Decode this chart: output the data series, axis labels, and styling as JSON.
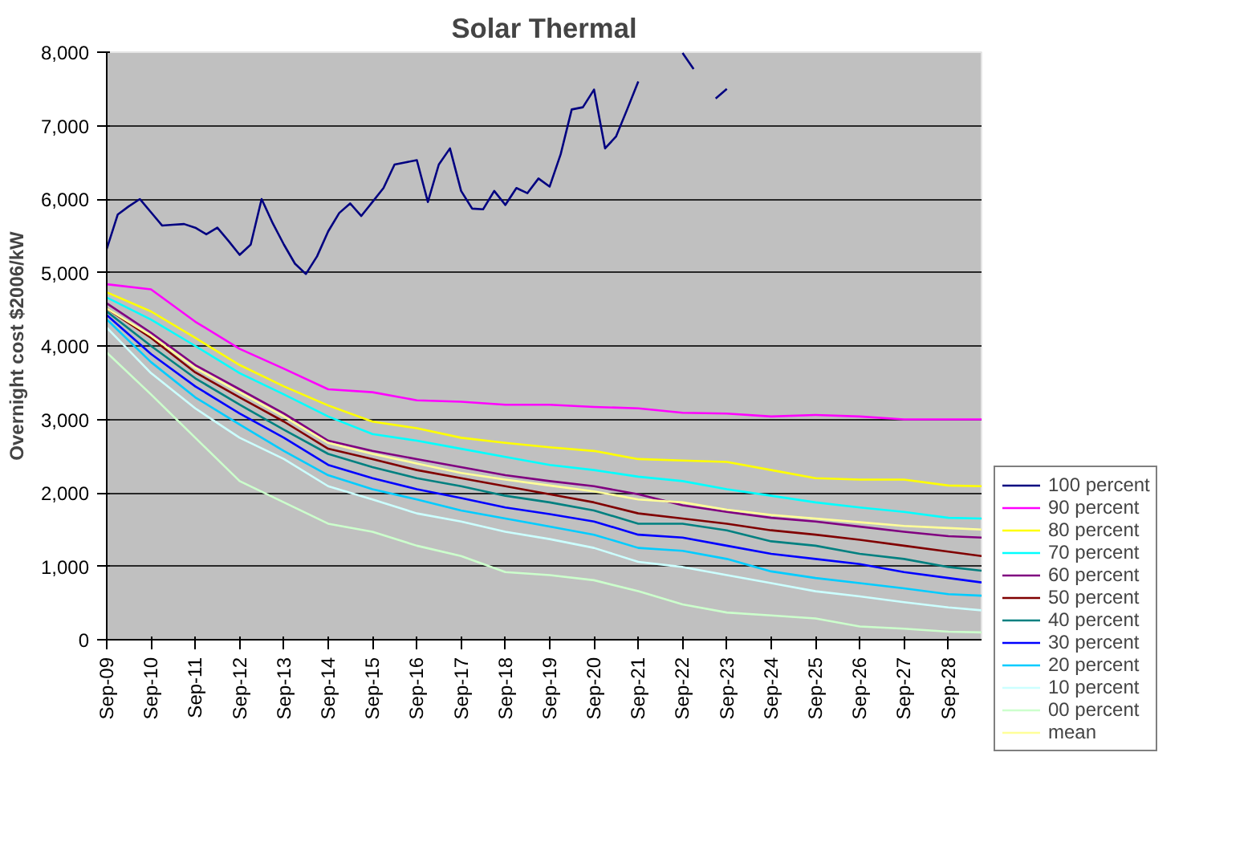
{
  "chart_data": {
    "type": "line",
    "title": "Solar Thermal",
    "ylabel": "Overnight cost $2006/kW",
    "x": [
      "2009-09",
      "2010-09",
      "2011-09",
      "2012-09",
      "2013-09",
      "2014-09",
      "2015-09",
      "2016-09",
      "2017-09",
      "2018-09",
      "2019-09",
      "2020-09",
      "2021-09",
      "2022-09",
      "2023-09",
      "2024-09",
      "2025-09",
      "2026-09",
      "2027-09",
      "2028-09",
      "2029-06"
    ],
    "xlim": [
      "2009-09",
      "2029-06"
    ],
    "xticks": [
      {
        "value": "2009-09",
        "label": "Sep-09"
      },
      {
        "value": "2010-09",
        "label": "Sep-10"
      },
      {
        "value": "2011-09",
        "label": "Sep-11"
      },
      {
        "value": "2012-09",
        "label": "Sep-12"
      },
      {
        "value": "2013-09",
        "label": "Sep-13"
      },
      {
        "value": "2014-09",
        "label": "Sep-14"
      },
      {
        "value": "2015-09",
        "label": "Sep-15"
      },
      {
        "value": "2016-09",
        "label": "Sep-16"
      },
      {
        "value": "2017-09",
        "label": "Sep-17"
      },
      {
        "value": "2018-09",
        "label": "Sep-18"
      },
      {
        "value": "2019-09",
        "label": "Sep-19"
      },
      {
        "value": "2020-09",
        "label": "Sep-20"
      },
      {
        "value": "2021-09",
        "label": "Sep-21"
      },
      {
        "value": "2022-09",
        "label": "Sep-22"
      },
      {
        "value": "2023-09",
        "label": "Sep-23"
      },
      {
        "value": "2024-09",
        "label": "Sep-24"
      },
      {
        "value": "2025-09",
        "label": "Sep-25"
      },
      {
        "value": "2026-09",
        "label": "Sep-26"
      },
      {
        "value": "2027-09",
        "label": "Sep-27"
      },
      {
        "value": "2028-09",
        "label": "Sep-28"
      }
    ],
    "ylim": [
      0,
      8000
    ],
    "yticks": [
      {
        "value": 0,
        "label": "0"
      },
      {
        "value": 1000,
        "label": "1,000"
      },
      {
        "value": 2000,
        "label": "2,000"
      },
      {
        "value": 3000,
        "label": "3,000"
      },
      {
        "value": 4000,
        "label": "4,000"
      },
      {
        "value": 5000,
        "label": "5,000"
      },
      {
        "value": 6000,
        "label": "6,000"
      },
      {
        "value": 7000,
        "label": "7,000"
      },
      {
        "value": 8000,
        "label": "8,000"
      }
    ],
    "grid": "y",
    "legend": "right",
    "marker": "none",
    "line_style": "solid",
    "series": [
      {
        "name": "100 percent",
        "color": "#000080",
        "x": [
          "2009-09",
          "2009-12",
          "2010-03",
          "2010-06",
          "2010-09",
          "2010-12",
          "2011-03",
          "2011-06",
          "2011-09",
          "2011-12",
          "2012-03",
          "2012-06",
          "2012-09",
          "2012-12",
          "2013-03",
          "2013-06",
          "2013-09",
          "2013-12",
          "2014-03",
          "2014-06",
          "2014-09",
          "2014-12",
          "2015-03",
          "2015-06",
          "2015-09",
          "2015-12",
          "2016-03",
          "2016-06",
          "2016-09",
          "2016-12",
          "2017-03",
          "2017-06",
          "2017-09",
          "2017-12",
          "2018-03",
          "2018-06",
          "2018-09",
          "2018-12",
          "2019-03",
          "2019-06",
          "2019-09",
          "2019-12",
          "2020-03",
          "2020-06",
          "2020-09",
          "2020-12",
          "2021-03",
          "2021-06",
          "2021-09",
          "2021-12",
          "2022-03",
          "2022-06",
          "2022-09",
          "2022-12",
          "2023-03",
          "2023-06",
          "2023-09"
        ],
        "values": [
          5320,
          5790,
          5900,
          6000,
          5820,
          5640,
          5650,
          5660,
          5610,
          5520,
          5610,
          5430,
          5240,
          5380,
          6000,
          5670,
          5380,
          5120,
          4980,
          5220,
          5560,
          5810,
          5940,
          5770,
          5960,
          6150,
          6470,
          6500,
          6530,
          5960,
          6470,
          6690,
          6110,
          5870,
          5860,
          6110,
          5920,
          6150,
          6080,
          6280,
          6170,
          6610,
          7220,
          7250,
          7490,
          6690,
          6850,
          7220,
          7600,
          null,
          null,
          null,
          7990,
          7770,
          null,
          7370,
          7500
        ]
      },
      {
        "name": "90 percent",
        "color": "#ff00ff",
        "values": [
          4840,
          4770,
          4330,
          3960,
          3690,
          3410,
          3370,
          3260,
          3240,
          3200,
          3200,
          3170,
          3150,
          3090,
          3080,
          3040,
          3060,
          3040,
          3000,
          3000,
          3000
        ]
      },
      {
        "name": "80 percent",
        "color": "#ffff00",
        "values": [
          4730,
          4470,
          4110,
          3740,
          3450,
          3190,
          2970,
          2880,
          2750,
          2680,
          2620,
          2570,
          2460,
          2440,
          2420,
          2310,
          2200,
          2180,
          2180,
          2100,
          2090
        ]
      },
      {
        "name": "70 percent",
        "color": "#00ffff",
        "values": [
          4660,
          4360,
          4000,
          3630,
          3340,
          3040,
          2800,
          2710,
          2600,
          2490,
          2380,
          2310,
          2220,
          2160,
          2050,
          1960,
          1870,
          1800,
          1740,
          1660,
          1650
        ]
      },
      {
        "name": "60 percent",
        "color": "#800080",
        "values": [
          4580,
          4180,
          3740,
          3410,
          3080,
          2710,
          2570,
          2460,
          2350,
          2240,
          2160,
          2090,
          1980,
          1830,
          1740,
          1660,
          1610,
          1540,
          1470,
          1410,
          1390
        ]
      },
      {
        "name": "50 percent",
        "color": "#800000",
        "values": [
          4510,
          4110,
          3640,
          3300,
          2970,
          2600,
          2460,
          2310,
          2200,
          2090,
          1980,
          1870,
          1720,
          1650,
          1580,
          1490,
          1430,
          1360,
          1280,
          1200,
          1140
        ]
      },
      {
        "name": "40 percent",
        "color": "#008080",
        "values": [
          4470,
          4000,
          3560,
          3200,
          2860,
          2530,
          2350,
          2200,
          2090,
          1960,
          1870,
          1760,
          1580,
          1580,
          1490,
          1340,
          1280,
          1170,
          1100,
          990,
          940
        ]
      },
      {
        "name": "30 percent",
        "color": "#0000ff",
        "values": [
          4420,
          3890,
          3450,
          3080,
          2750,
          2380,
          2200,
          2050,
          1930,
          1800,
          1710,
          1610,
          1430,
          1390,
          1280,
          1170,
          1100,
          1030,
          920,
          840,
          780
        ]
      },
      {
        "name": "20 percent",
        "color": "#00ccff",
        "values": [
          4360,
          3780,
          3300,
          2930,
          2570,
          2240,
          2050,
          1910,
          1760,
          1650,
          1540,
          1430,
          1250,
          1210,
          1100,
          930,
          840,
          770,
          700,
          620,
          600
        ]
      },
      {
        "name": "10 percent",
        "color": "#ccffff",
        "values": [
          4250,
          3630,
          3150,
          2750,
          2460,
          2090,
          1910,
          1720,
          1610,
          1470,
          1370,
          1250,
          1060,
          990,
          880,
          770,
          660,
          590,
          510,
          440,
          400
        ]
      },
      {
        "name": "00 percent",
        "color": "#ccffcc",
        "values": [
          3910,
          3340,
          2750,
          2160,
          1870,
          1580,
          1470,
          1280,
          1140,
          920,
          880,
          810,
          660,
          480,
          370,
          330,
          290,
          180,
          150,
          110,
          100
        ]
      },
      {
        "name": "mean",
        "color": "#ffff99",
        "values": [
          4510,
          4140,
          3700,
          3370,
          3040,
          2680,
          2530,
          2400,
          2270,
          2180,
          2100,
          2020,
          1910,
          1870,
          1770,
          1700,
          1650,
          1600,
          1550,
          1520,
          1500
        ]
      }
    ]
  }
}
